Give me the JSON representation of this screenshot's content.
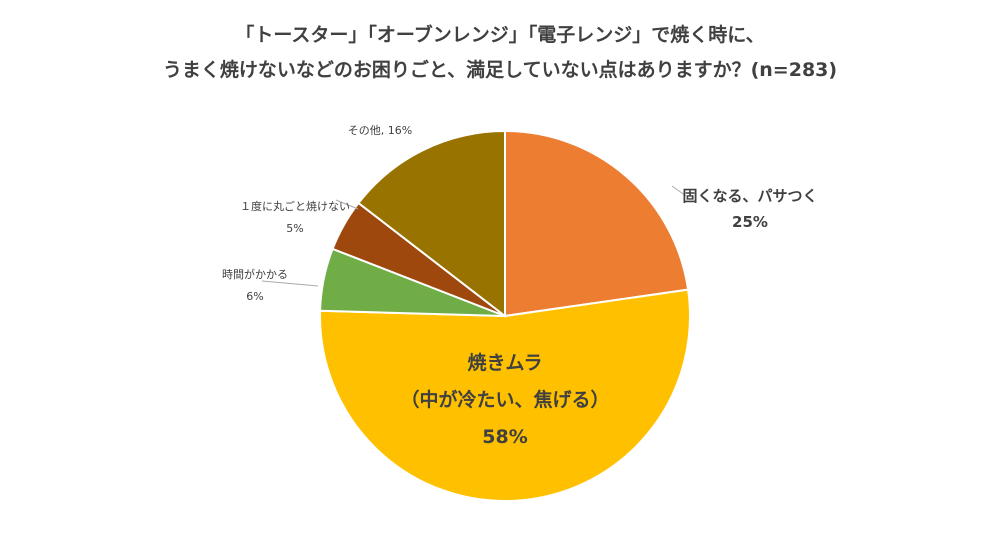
{
  "chart_data": {
    "type": "pie",
    "title_lines": [
      "「トースター」「オーブンレンジ」「電子レンジ」で焼く時に、",
      "うまく焼けないなどのお困りごと、満足していない点はありますか？(n=283)"
    ],
    "slices": [
      {
        "label": "固くなる、パサつく",
        "value": 25,
        "value_label": "25%",
        "color": "#ED7D31"
      },
      {
        "label": "焼きムラ",
        "label2": "（中が冷たい、焦げる）",
        "value": 58,
        "value_label": "58%",
        "color": "#FFC000"
      },
      {
        "label": "時間がかかる",
        "value": 6,
        "value_label": "6%",
        "color": "#70AD47"
      },
      {
        "label": "１度に丸ごと焼けない",
        "value": 5,
        "value_label": "5%",
        "color": "#9E480E"
      },
      {
        "label": "その他",
        "value": 16,
        "value_label": "16%",
        "combined_label": "その他, 16%",
        "color": "#997300"
      }
    ]
  }
}
